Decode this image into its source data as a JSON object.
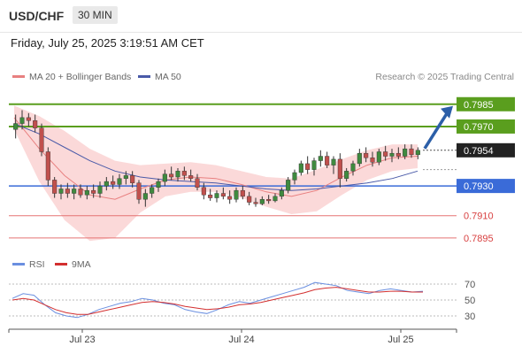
{
  "header": {
    "pair": "USD/CHF",
    "timeframe": "30 MIN"
  },
  "timestamp": "Friday, July 25, 2025 3:19:51 AM CET",
  "legend": {
    "ma20": "MA 20 + Bollinger Bands",
    "ma50": "MA 50",
    "credit": "Research © 2025 Trading Central"
  },
  "rsi_legend": {
    "rsi": "RSI",
    "ma": "9MA"
  },
  "colors": {
    "resistance": "#5a9e1e",
    "support": "#3a6bd8",
    "minor_support": "#e57373",
    "target_arrow": "#2c5fa8",
    "up": "#3f8a3f",
    "down": "#c0504d",
    "band": "#f9c9c9",
    "ma20": "#e88080",
    "ma50": "#4a5aa8",
    "rsi": "#6a8fe0",
    "rsi_ma": "#d32f2f",
    "price_tag": "#222222"
  },
  "chart_data": [
    {
      "type": "candlestick",
      "title": "USD/CHF",
      "timeframe": "30 MIN",
      "x_ticks": [
        "Jul 23",
        "Jul 24",
        "Jul 25"
      ],
      "ylim": [
        0.7886,
        0.7992
      ],
      "grid": false,
      "legend_position": "top-left",
      "current_price": "0.7954",
      "levels": [
        {
          "label": "0.7985",
          "value": 0.7985,
          "kind": "resistance"
        },
        {
          "label": "0.7970",
          "value": 0.797,
          "kind": "resistance"
        },
        {
          "label": "0.7930",
          "value": 0.793,
          "kind": "support"
        },
        {
          "label": "0.7910",
          "value": 0.791,
          "kind": "minor_support"
        },
        {
          "label": "0.7895",
          "value": 0.7895,
          "kind": "minor_support"
        }
      ],
      "target_arrow": {
        "from": 0.7954,
        "to": 0.7985
      },
      "series": [
        {
          "name": "MA 20 + Bollinger Bands",
          "approx_path": [
            0.7976,
            0.7955,
            0.7937,
            0.7924,
            0.7921,
            0.7928,
            0.7934,
            0.7936,
            0.7935,
            0.7931,
            0.7926,
            0.7923,
            0.7927,
            0.7936,
            0.7944,
            0.7949,
            0.795
          ]
        },
        {
          "name": "MA 50",
          "approx_path": [
            0.7972,
            0.7965,
            0.7956,
            0.7947,
            0.794,
            0.7936,
            0.7934,
            0.7933,
            0.7932,
            0.793,
            0.7928,
            0.7927,
            0.7928,
            0.793,
            0.7932,
            0.7935,
            0.794
          ]
        }
      ],
      "candles_ohlc": [
        [
          0.7968,
          0.7978,
          0.7962,
          0.7972
        ],
        [
          0.7972,
          0.7981,
          0.7968,
          0.7976
        ],
        [
          0.7976,
          0.7979,
          0.797,
          0.7974
        ],
        [
          0.7974,
          0.7978,
          0.7966,
          0.7969
        ],
        [
          0.7969,
          0.7972,
          0.795,
          0.7953
        ],
        [
          0.7953,
          0.7956,
          0.793,
          0.7934
        ],
        [
          0.7934,
          0.7936,
          0.7922,
          0.7925
        ],
        [
          0.7925,
          0.7931,
          0.7921,
          0.7928
        ],
        [
          0.7928,
          0.7932,
          0.7922,
          0.7925
        ],
        [
          0.7925,
          0.7931,
          0.7921,
          0.7928
        ],
        [
          0.7928,
          0.7931,
          0.7922,
          0.7924
        ],
        [
          0.7924,
          0.793,
          0.7921,
          0.7927
        ],
        [
          0.7927,
          0.7931,
          0.7922,
          0.7925
        ],
        [
          0.7925,
          0.7933,
          0.7922,
          0.793
        ],
        [
          0.793,
          0.7936,
          0.7927,
          0.7933
        ],
        [
          0.7933,
          0.7937,
          0.7928,
          0.7931
        ],
        [
          0.7931,
          0.7938,
          0.7928,
          0.7935
        ],
        [
          0.7935,
          0.794,
          0.7931,
          0.7937
        ],
        [
          0.7937,
          0.794,
          0.7929,
          0.7932
        ],
        [
          0.7932,
          0.7934,
          0.7918,
          0.7921
        ],
        [
          0.7921,
          0.7928,
          0.7916,
          0.7925
        ],
        [
          0.7925,
          0.7931,
          0.7922,
          0.7929
        ],
        [
          0.7929,
          0.7935,
          0.7926,
          0.7933
        ],
        [
          0.7933,
          0.7941,
          0.793,
          0.7938
        ],
        [
          0.7938,
          0.7943,
          0.7934,
          0.7936
        ],
        [
          0.7936,
          0.7942,
          0.7933,
          0.794
        ],
        [
          0.794,
          0.7943,
          0.7934,
          0.7937
        ],
        [
          0.7937,
          0.7941,
          0.7933,
          0.7935
        ],
        [
          0.7935,
          0.7938,
          0.7927,
          0.7929
        ],
        [
          0.7929,
          0.7932,
          0.7921,
          0.7924
        ],
        [
          0.7924,
          0.7928,
          0.792,
          0.7922
        ],
        [
          0.7922,
          0.7927,
          0.7919,
          0.7925
        ],
        [
          0.7925,
          0.7929,
          0.7921,
          0.7923
        ],
        [
          0.7923,
          0.7927,
          0.7918,
          0.7921
        ],
        [
          0.7921,
          0.7929,
          0.7919,
          0.7927
        ],
        [
          0.7927,
          0.793,
          0.7921,
          0.7923
        ],
        [
          0.7923,
          0.7926,
          0.7917,
          0.7919
        ],
        [
          0.7919,
          0.7922,
          0.7916,
          0.7918
        ],
        [
          0.7918,
          0.7923,
          0.7917,
          0.7921
        ],
        [
          0.7921,
          0.7924,
          0.7918,
          0.792
        ],
        [
          0.792,
          0.7925,
          0.7919,
          0.7923
        ],
        [
          0.7923,
          0.7929,
          0.7921,
          0.7927
        ],
        [
          0.7927,
          0.7936,
          0.7925,
          0.7934
        ],
        [
          0.7934,
          0.7941,
          0.7931,
          0.7939
        ],
        [
          0.7939,
          0.7947,
          0.7937,
          0.7945
        ],
        [
          0.7945,
          0.795,
          0.7938,
          0.7941
        ],
        [
          0.7941,
          0.7949,
          0.7937,
          0.7947
        ],
        [
          0.7947,
          0.7954,
          0.7943,
          0.795
        ],
        [
          0.795,
          0.7953,
          0.7942,
          0.7944
        ],
        [
          0.7944,
          0.795,
          0.7938,
          0.7948
        ],
        [
          0.7948,
          0.7952,
          0.7929,
          0.7935
        ],
        [
          0.7935,
          0.7942,
          0.7933,
          0.794
        ],
        [
          0.794,
          0.7947,
          0.7937,
          0.7945
        ],
        [
          0.7945,
          0.7955,
          0.7943,
          0.7952
        ],
        [
          0.7952,
          0.7956,
          0.7946,
          0.7949
        ],
        [
          0.7949,
          0.7953,
          0.7943,
          0.7946
        ],
        [
          0.7946,
          0.7955,
          0.7944,
          0.7953
        ],
        [
          0.7953,
          0.7957,
          0.7947,
          0.795
        ],
        [
          0.795,
          0.7955,
          0.7946,
          0.7952
        ],
        [
          0.7952,
          0.7956,
          0.7948,
          0.795
        ],
        [
          0.795,
          0.7958,
          0.7948,
          0.7955
        ],
        [
          0.7955,
          0.7958,
          0.7949,
          0.7951
        ],
        [
          0.7951,
          0.7956,
          0.7948,
          0.7954
        ]
      ]
    },
    {
      "type": "line",
      "title": "RSI",
      "x_ticks": [
        "Jul 23",
        "Jul 24",
        "Jul 25"
      ],
      "y_ticks": [
        70,
        50,
        30
      ],
      "ylim": [
        20,
        80
      ],
      "series": [
        {
          "name": "RSI",
          "values": [
            52,
            58,
            56,
            44,
            34,
            30,
            28,
            32,
            38,
            42,
            46,
            48,
            52,
            50,
            46,
            44,
            38,
            35,
            33,
            38,
            44,
            48,
            46,
            50,
            54,
            58,
            62,
            66,
            72,
            70,
            68,
            62,
            60,
            58,
            62,
            64,
            62,
            60,
            61
          ]
        },
        {
          "name": "9MA",
          "values": [
            50,
            52,
            50,
            44,
            38,
            34,
            32,
            32,
            35,
            38,
            41,
            44,
            47,
            48,
            47,
            45,
            42,
            40,
            38,
            39,
            41,
            44,
            45,
            47,
            50,
            53,
            56,
            59,
            63,
            65,
            66,
            64,
            62,
            60,
            60,
            61,
            61,
            60,
            60
          ]
        }
      ]
    }
  ]
}
